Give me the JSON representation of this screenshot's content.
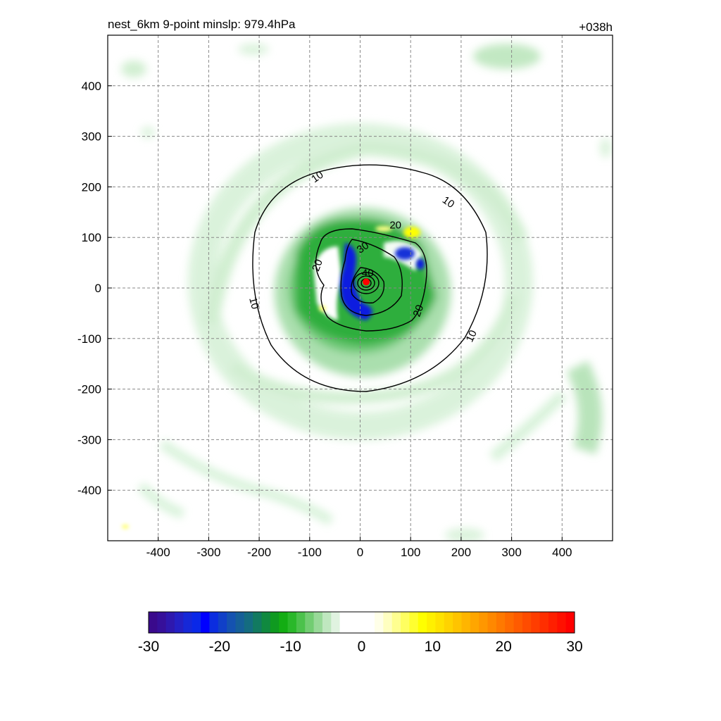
{
  "chart_data": {
    "type": "heatmap",
    "title": "nest_6km  9-point minslp: 979.4hPa",
    "forecast_hour": "+038h",
    "xlim": [
      -500,
      500
    ],
    "ylim": [
      -500,
      500
    ],
    "x_ticks": [
      "-400",
      "-300",
      "-200",
      "-100",
      "0",
      "100",
      "200",
      "300",
      "400"
    ],
    "y_ticks": [
      "400",
      "300",
      "200",
      "100",
      "0",
      "-100",
      "-200",
      "-300",
      "-400"
    ],
    "grid": true,
    "colorbar": {
      "min": -30,
      "max": 30,
      "ticks": [
        "-30",
        "-20",
        "-10",
        "0",
        "10",
        "20",
        "30"
      ],
      "placement": "bottom"
    },
    "contours": [
      {
        "level": 10,
        "label": "10"
      },
      {
        "level": 20,
        "label": "20"
      },
      {
        "level": 30,
        "label": "30"
      },
      {
        "level": 40,
        "label": "40"
      }
    ],
    "storm_center": {
      "x": 12,
      "y": 12,
      "color": "#ff0000"
    },
    "colors": {
      "neg_strong": "#0000dd",
      "neg_mid": "#12a82a",
      "neg_weak": "#d6f2d8",
      "pos_weak": "#ffff66",
      "pos_mid": "#ffa500",
      "pos_strong": "#ff0000"
    }
  }
}
